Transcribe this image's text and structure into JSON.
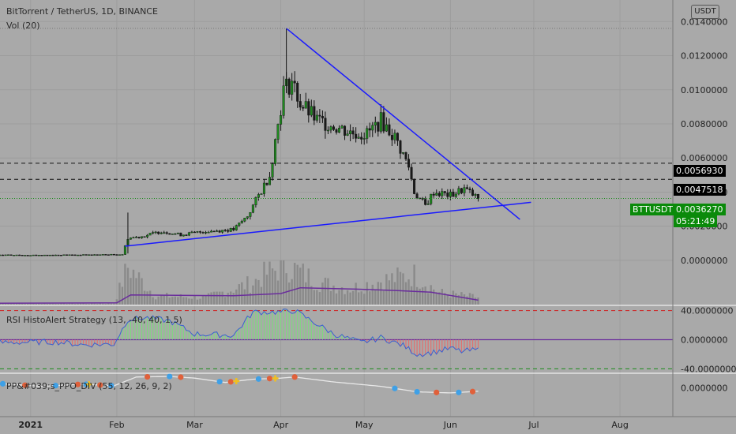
{
  "header": {
    "symbol_title": "BitTorrent / TetherUS, 1D, BINANCE",
    "vol_label": "Vol (20)",
    "currency_button": "USDT",
    "rsi_label": "RSI HistoAlert Strategy (13, -40, 40, 1.5)",
    "ppo_label": "PP&#039;s_PPO_DIV (55, 12, 26, 9, 2)"
  },
  "price_axis": {
    "ticks": [
      "0.0140000",
      "0.0120000",
      "0.0100000",
      "0.0080000",
      "0.0060000",
      "0.0040000",
      "0.0020000",
      "0.0000000"
    ],
    "tick_values": [
      0.014,
      0.012,
      0.01,
      0.008,
      0.006,
      0.004,
      0.002,
      0.0
    ],
    "tags": {
      "level_1": "0.0056930",
      "level_2": "0.0047518",
      "symbol": "BTTUSDT",
      "last_price": "0.0036270",
      "countdown": "05:21:49"
    }
  },
  "rsi_axis": {
    "ticks": [
      "40.0000000",
      "0.0000000",
      "-40.0000000"
    ]
  },
  "ppo_axis": {
    "ticks": [
      "0.0000000"
    ]
  },
  "time_axis": {
    "labels": [
      "2021",
      "Feb",
      "Mar",
      "Apr",
      "May",
      "Jun",
      "Jul",
      "Aug"
    ]
  },
  "colors": {
    "background": "#a9a9a9",
    "up_candle": "#1f8a1f",
    "down_candle": "#1a1a1a",
    "trendline": "#1a1aff",
    "volume_ma": "#6a2d9c",
    "rsi_line": "#3a5fd0",
    "rsi_pos": "#7fd97f",
    "rsi_neg": "#e07070",
    "level_line": "#111111",
    "green_dash": "#1a8a1a",
    "red_dash": "#d02020"
  },
  "chart_data": [
    {
      "type": "candlestick",
      "title": "BitTorrent / TetherUS, 1D, BINANCE",
      "x_range": [
        "2020-12-21",
        "2021-08-20"
      ],
      "ylim": [
        -0.0013,
        0.0148
      ],
      "x_ticks": [
        "2021",
        "Feb",
        "Mar",
        "Apr",
        "May",
        "Jun",
        "Jul",
        "Aug"
      ],
      "price_series": [
        {
          "date": "2020-12-21",
          "close": 0.00031
        },
        {
          "date": "2021-01-04",
          "close": 0.00031
        },
        {
          "date": "2021-01-18",
          "close": 0.00032
        },
        {
          "date": "2021-01-31",
          "close": 0.00034
        },
        {
          "date": "2021-02-03",
          "close": 0.00035
        },
        {
          "date": "2021-02-05",
          "close": 0.0013
        },
        {
          "date": "2021-02-10",
          "close": 0.0014
        },
        {
          "date": "2021-02-17",
          "close": 0.0017
        },
        {
          "date": "2021-02-24",
          "close": 0.0015
        },
        {
          "date": "2021-03-05",
          "close": 0.0017
        },
        {
          "date": "2021-03-15",
          "close": 0.0018
        },
        {
          "date": "2021-03-20",
          "close": 0.0026
        },
        {
          "date": "2021-03-24",
          "close": 0.0038
        },
        {
          "date": "2021-03-28",
          "close": 0.005
        },
        {
          "date": "2021-03-31",
          "close": 0.008
        },
        {
          "date": "2021-04-02",
          "close": 0.01
        },
        {
          "date": "2021-04-05",
          "close": 0.0105
        },
        {
          "date": "2021-04-08",
          "close": 0.0092
        },
        {
          "date": "2021-04-14",
          "close": 0.0082
        },
        {
          "date": "2021-04-20",
          "close": 0.0079
        },
        {
          "date": "2021-04-26",
          "close": 0.0075
        },
        {
          "date": "2021-05-02",
          "close": 0.0074
        },
        {
          "date": "2021-05-07",
          "close": 0.0082
        },
        {
          "date": "2021-05-12",
          "close": 0.0072
        },
        {
          "date": "2021-05-15",
          "close": 0.0062
        },
        {
          "date": "2021-05-17",
          "close": 0.0055
        },
        {
          "date": "2021-05-19",
          "close": 0.004
        },
        {
          "date": "2021-05-23",
          "close": 0.0032
        },
        {
          "date": "2021-05-26",
          "close": 0.004
        },
        {
          "date": "2021-06-01",
          "close": 0.0038
        },
        {
          "date": "2021-06-06",
          "close": 0.0042
        },
        {
          "date": "2021-06-11",
          "close": 0.0036
        }
      ],
      "key_points": {
        "peak": {
          "date": "2021-04-03",
          "high": 0.0136
        },
        "feb_spike": {
          "date": "2021-02-05",
          "high": 0.0028
        },
        "last_close": 0.003627
      },
      "horizontal_levels": [
        {
          "value": 0.005693,
          "label": "0.0056930",
          "style": "dashed"
        },
        {
          "value": 0.0047518,
          "label": "0.0047518",
          "style": "dashed"
        }
      ],
      "trendlines": [
        {
          "from": {
            "date": "2021-02-04",
            "value": 0.00083
          },
          "to": {
            "date": "2021-06-30",
            "value": 0.0034
          }
        },
        {
          "from": {
            "date": "2021-04-03",
            "value": 0.0136
          },
          "to": {
            "date": "2021-06-26",
            "value": 0.0024
          }
        }
      ]
    },
    {
      "type": "bar",
      "title": "Vol (20)",
      "x_range": [
        "2020-12-21",
        "2021-08-20"
      ],
      "ylim": [
        0,
        1
      ],
      "relative_values": [
        {
          "date": "2020-12-21",
          "value": 0.02
        },
        {
          "date": "2021-01-31",
          "value": 0.03
        },
        {
          "date": "2021-02-05",
          "value": 0.95
        },
        {
          "date": "2021-02-15",
          "value": 0.22
        },
        {
          "date": "2021-03-05",
          "value": 0.18
        },
        {
          "date": "2021-03-22",
          "value": 0.55
        },
        {
          "date": "2021-03-26",
          "value": 0.75
        },
        {
          "date": "2021-04-03",
          "value": 1.0
        },
        {
          "date": "2021-04-15",
          "value": 0.55
        },
        {
          "date": "2021-04-26",
          "value": 0.4
        },
        {
          "date": "2021-05-07",
          "value": 0.6
        },
        {
          "date": "2021-05-19",
          "value": 0.75
        },
        {
          "date": "2021-05-28",
          "value": 0.3
        },
        {
          "date": "2021-06-11",
          "value": 0.18
        }
      ],
      "moving_average": [
        {
          "date": "2020-12-21",
          "value": 0.03
        },
        {
          "date": "2021-02-01",
          "value": 0.04
        },
        {
          "date": "2021-02-06",
          "value": 0.22
        },
        {
          "date": "2021-03-15",
          "value": 0.2
        },
        {
          "date": "2021-04-01",
          "value": 0.25
        },
        {
          "date": "2021-04-08",
          "value": 0.38
        },
        {
          "date": "2021-04-28",
          "value": 0.35
        },
        {
          "date": "2021-05-12",
          "value": 0.32
        },
        {
          "date": "2021-05-25",
          "value": 0.28
        },
        {
          "date": "2021-06-11",
          "value": 0.1
        }
      ]
    },
    {
      "type": "area",
      "title": "RSI HistoAlert Strategy (13, -40, 40, 1.5)",
      "ylim": [
        -45,
        45
      ],
      "levels": [
        40,
        0,
        -40
      ],
      "series": [
        {
          "date": "2020-12-21",
          "value": -4
        },
        {
          "date": "2021-01-10",
          "value": -3
        },
        {
          "date": "2021-01-20",
          "value": -7
        },
        {
          "date": "2021-01-31",
          "value": -6
        },
        {
          "date": "2021-02-05",
          "value": 28
        },
        {
          "date": "2021-02-12",
          "value": 30
        },
        {
          "date": "2021-02-20",
          "value": 26
        },
        {
          "date": "2021-03-01",
          "value": 8
        },
        {
          "date": "2021-03-15",
          "value": 6
        },
        {
          "date": "2021-03-22",
          "value": 38
        },
        {
          "date": "2021-04-01",
          "value": 38
        },
        {
          "date": "2021-04-06",
          "value": 40
        },
        {
          "date": "2021-04-12",
          "value": 26
        },
        {
          "date": "2021-04-20",
          "value": 8
        },
        {
          "date": "2021-04-30",
          "value": -4
        },
        {
          "date": "2021-05-07",
          "value": 3
        },
        {
          "date": "2021-05-15",
          "value": -8
        },
        {
          "date": "2021-05-20",
          "value": -20
        },
        {
          "date": "2021-05-25",
          "value": -18
        },
        {
          "date": "2021-06-01",
          "value": -12
        },
        {
          "date": "2021-06-05",
          "value": -16
        },
        {
          "date": "2021-06-11",
          "value": -14
        }
      ]
    },
    {
      "type": "line",
      "title": "PP&#039;s_PPO_DIV (55, 12, 26, 9, 2)",
      "ylim": [
        -2.4,
        1.2
      ],
      "series": [
        {
          "date": "2020-12-21",
          "value": 0.4
        },
        {
          "date": "2021-01-05",
          "value": 0.15
        },
        {
          "date": "2021-01-20",
          "value": 0.35
        },
        {
          "date": "2021-01-31",
          "value": 0.2
        },
        {
          "date": "2021-02-08",
          "value": 1.0
        },
        {
          "date": "2021-02-20",
          "value": 1.05
        },
        {
          "date": "2021-03-01",
          "value": 0.9
        },
        {
          "date": "2021-03-12",
          "value": 0.5
        },
        {
          "date": "2021-03-22",
          "value": 0.8
        },
        {
          "date": "2021-04-01",
          "value": 0.9
        },
        {
          "date": "2021-04-06",
          "value": 1.0
        },
        {
          "date": "2021-04-20",
          "value": 0.55
        },
        {
          "date": "2021-05-07",
          "value": 0.15
        },
        {
          "date": "2021-05-20",
          "value": -0.35
        },
        {
          "date": "2021-06-01",
          "value": -0.45
        },
        {
          "date": "2021-06-11",
          "value": -0.3
        }
      ]
    }
  ]
}
